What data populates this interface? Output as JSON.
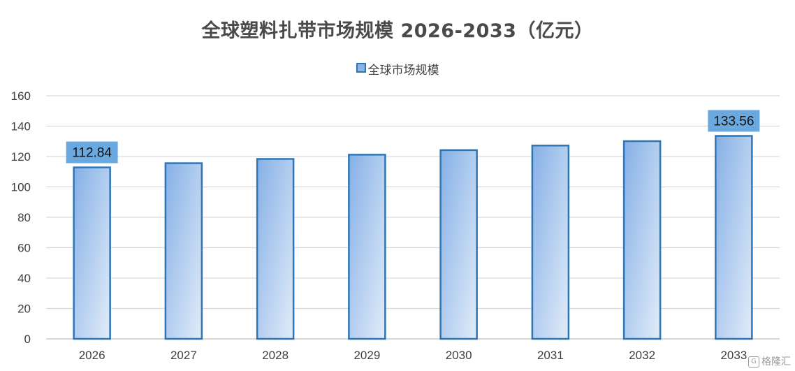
{
  "chart_data": {
    "type": "bar",
    "title": "全球塑料扎带市场规模 2026-2033（亿元）",
    "xlabel": "",
    "ylabel": "",
    "categories": [
      "2026",
      "2027",
      "2028",
      "2029",
      "2030",
      "2031",
      "2032",
      "2033"
    ],
    "series": [
      {
        "name": "全球市场规模",
        "values": [
          112.84,
          115.6,
          118.4,
          121.2,
          124.2,
          127.2,
          130.1,
          133.56
        ]
      }
    ],
    "data_labels": [
      {
        "category": "2026",
        "text": "112.84"
      },
      {
        "category": "2033",
        "text": "133.56"
      }
    ],
    "ylim": [
      0,
      160
    ],
    "yticks": [
      "0",
      "20",
      "40",
      "60",
      "80",
      "100",
      "120",
      "140",
      "160"
    ],
    "grid": true,
    "legend_position": "top-center",
    "colors": {
      "bar_fill_top": "#8ab4e8",
      "bar_fill_bottom": "#dde9f8",
      "bar_border": "#2e75b6",
      "label_bg": "#6aa9df",
      "grid": "#d9d9d9",
      "axis": "#bfbfbf"
    }
  },
  "watermark": {
    "icon": "G",
    "text": "格隆汇"
  }
}
